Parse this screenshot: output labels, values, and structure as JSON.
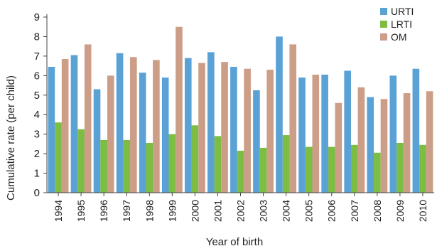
{
  "chart_data": {
    "type": "bar",
    "title": "",
    "xlabel": "Year of birth",
    "ylabel": "Cumulative rate (per child)",
    "ylim": [
      0,
      9
    ],
    "yticks": [
      0,
      1,
      2,
      3,
      4,
      5,
      6,
      7,
      8,
      9
    ],
    "grid": false,
    "legend_position": "top-right",
    "categories": [
      "1994",
      "1995",
      "1996",
      "1997",
      "1998",
      "1999",
      "2000",
      "2001",
      "2002",
      "2003",
      "2004",
      "2005",
      "2006",
      "2007",
      "2008",
      "2009",
      "2010"
    ],
    "series": [
      {
        "name": "URTI",
        "color": "#5aa2d6",
        "values": [
          6.45,
          7.05,
          5.3,
          7.15,
          6.15,
          5.9,
          6.9,
          7.2,
          6.45,
          5.25,
          8.0,
          5.9,
          6.05,
          6.25,
          4.9,
          6.0,
          6.35
        ]
      },
      {
        "name": "LRTI",
        "color": "#7cbd43",
        "values": [
          3.6,
          3.25,
          2.7,
          2.7,
          2.55,
          3.0,
          3.45,
          2.9,
          2.15,
          2.3,
          2.95,
          2.35,
          2.35,
          2.45,
          2.05,
          2.55,
          2.45
        ]
      },
      {
        "name": "OM",
        "color": "#cc9e88",
        "values": [
          6.85,
          7.6,
          6.0,
          6.95,
          6.8,
          8.5,
          6.65,
          6.7,
          6.35,
          6.3,
          7.6,
          6.05,
          4.6,
          5.4,
          4.8,
          5.1,
          5.2
        ]
      }
    ]
  }
}
